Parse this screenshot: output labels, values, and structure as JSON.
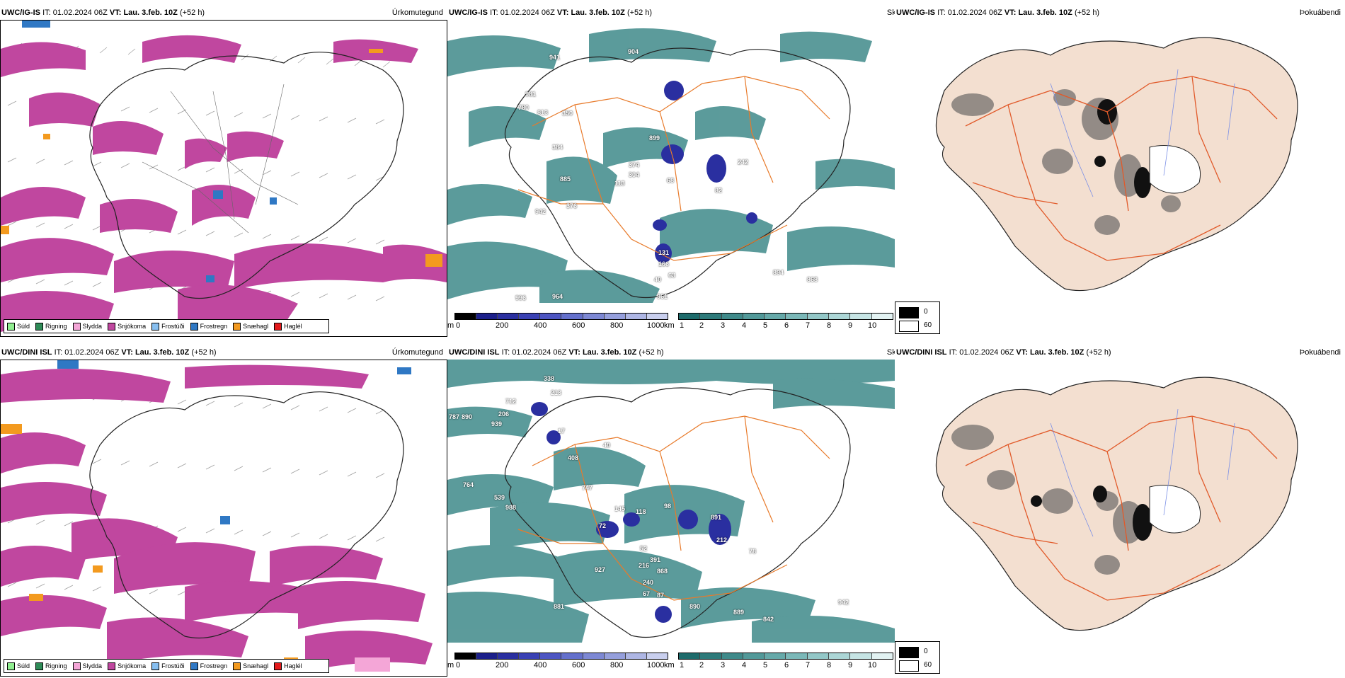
{
  "rows": [
    {
      "model": "UWC/IG-IS",
      "it_label": "IT:",
      "it_value": "01.02.2024 06Z",
      "vt_label": "VT:",
      "vt_value": "Lau. 3.feb. 10Z",
      "lead": "(+52 h)"
    },
    {
      "model": "UWC/DINI ISL",
      "it_label": "IT:",
      "it_value": "01.02.2024 06Z",
      "vt_label": "VT:",
      "vt_value": "Lau. 3.feb. 10Z",
      "lead": "(+52 h)"
    }
  ],
  "panels": {
    "precip_type": "Úrkomutegund",
    "visibility": "Skyggni",
    "fog": "Þokuábendi"
  },
  "precip_legend": [
    {
      "label": "Súld",
      "color": "#90ee90"
    },
    {
      "label": "Rigning",
      "color": "#2e8b57"
    },
    {
      "label": "Slydda",
      "color": "#f4a6d7"
    },
    {
      "label": "Snjókoma",
      "color": "#c0479f"
    },
    {
      "label": "Frostúði",
      "color": "#87bff0"
    },
    {
      "label": "Frostregn",
      "color": "#2f78c4"
    },
    {
      "label": "Snæhagl",
      "color": "#f39a1f"
    },
    {
      "label": "Haglél",
      "color": "#e31a1c"
    }
  ],
  "visibility_scale": {
    "m_unit": "m",
    "m_ticks": [
      "0",
      "200",
      "400",
      "600",
      "800",
      "1000"
    ],
    "km_unit": "km",
    "km_ticks": [
      "1",
      "2",
      "3",
      "4",
      "5",
      "6",
      "7",
      "8",
      "9",
      "10"
    ],
    "m_colors": [
      "#000000",
      "#1b1f8a",
      "#2a2fa0",
      "#3a41b4",
      "#4d55c2",
      "#6470cc",
      "#7d88d4",
      "#959fdc",
      "#aeb6e4",
      "#c9cfee"
    ],
    "km_colors": [
      "#1d6b6b",
      "#2d7a7a",
      "#3f8a8a",
      "#529999",
      "#66a9a9",
      "#7bb8b8",
      "#93c7c7",
      "#acd6d6",
      "#c6e4e4",
      "#e2f2f2"
    ]
  },
  "fog_legend": [
    {
      "label": "0",
      "color": "#000000"
    },
    {
      "label": "60",
      "color": "#ffffff"
    }
  ],
  "visibility_labels_top": [
    "941",
    "904",
    "981",
    "813",
    "350",
    "780",
    "899",
    "384",
    "374",
    "304",
    "885",
    "113",
    "68",
    "82",
    "942",
    "376",
    "242",
    "131",
    "166",
    "63",
    "40",
    "996",
    "964",
    "961",
    "894",
    "868"
  ],
  "visibility_labels_bot": [
    "338",
    "213",
    "712",
    "206",
    "939",
    "787",
    "890",
    "17",
    "408",
    "40",
    "747",
    "764",
    "539",
    "988",
    "145",
    "118",
    "98",
    "891",
    "72",
    "212",
    "52",
    "391",
    "927",
    "216",
    "868",
    "240",
    "67",
    "87",
    "78",
    "881",
    "890",
    "889",
    "842",
    "942"
  ],
  "colors": {
    "snow": "#c0479f",
    "teal": "#3f8a8a",
    "land_fog": "#f3dfd0",
    "roads": "#e15a2a",
    "rivers": "#7a8fe6"
  }
}
